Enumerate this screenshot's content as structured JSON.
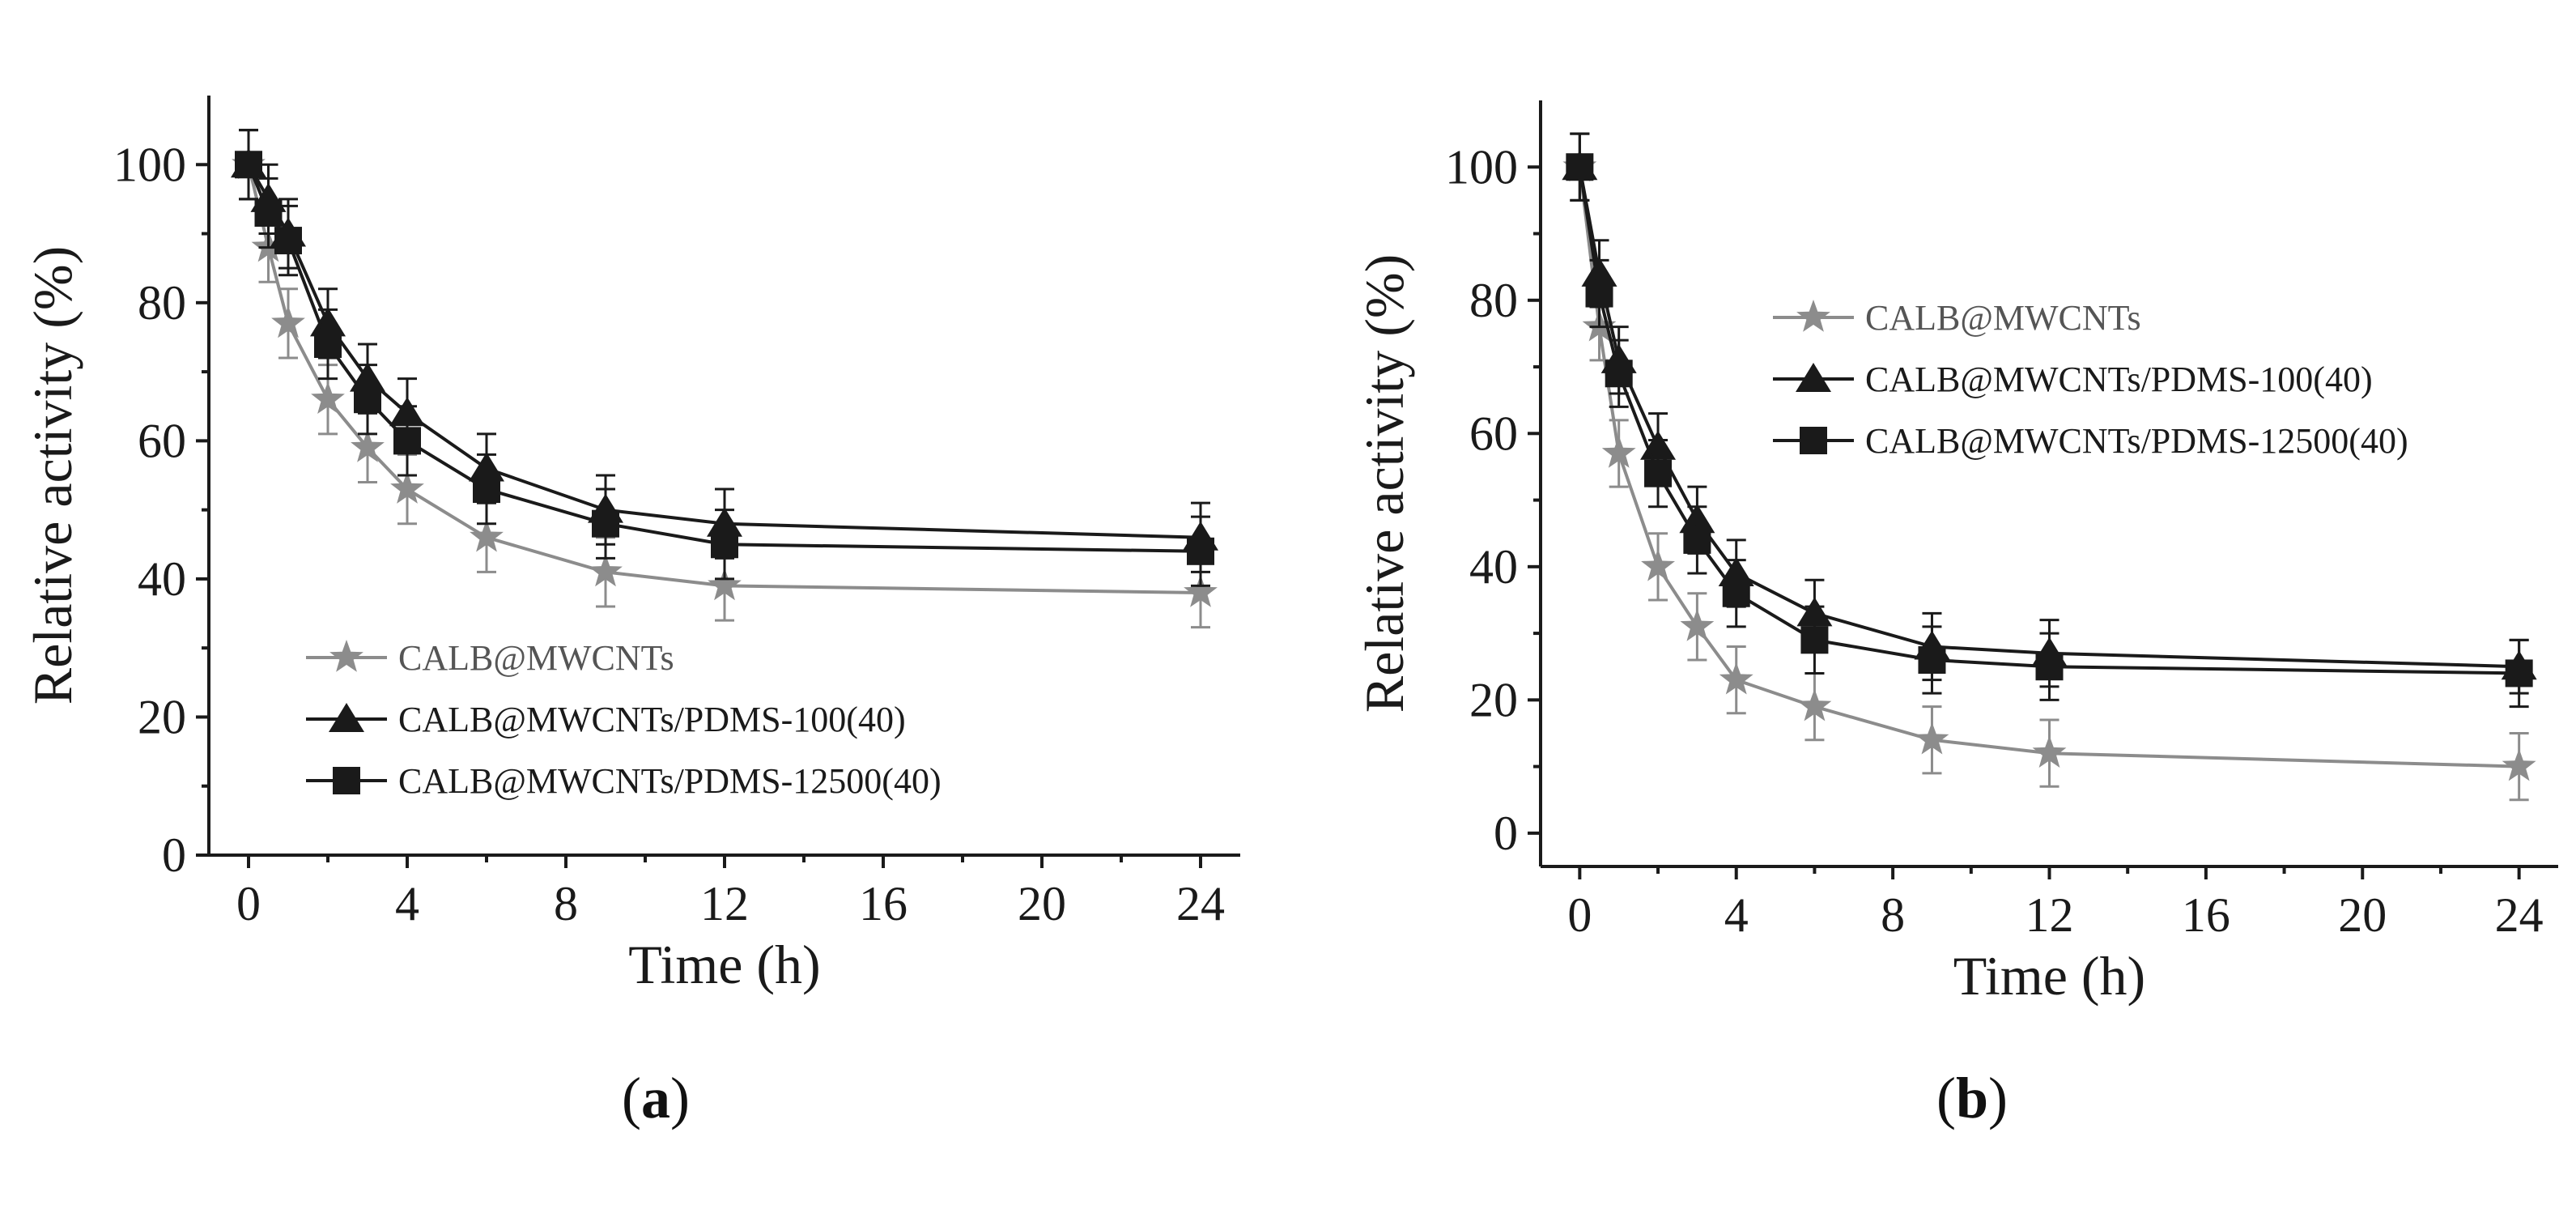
{
  "chart_data": [
    {
      "panel": "a",
      "type": "line",
      "xlabel": "Time (h)",
      "ylabel": "Relative activity (%)",
      "xlim": [
        -1,
        25
      ],
      "ylim": [
        0,
        110
      ],
      "xticks": [
        0,
        4,
        8,
        12,
        16,
        20,
        24
      ],
      "yticks": [
        0,
        20,
        40,
        60,
        80,
        100
      ],
      "legend_position": "bottom-left",
      "series": [
        {
          "name": "CALB@MWCNTs",
          "marker": "star",
          "color": "#8c8c8c",
          "x": [
            0,
            0.5,
            1,
            2,
            3,
            4,
            6,
            9,
            12,
            24
          ],
          "y": [
            100,
            88,
            77,
            66,
            59,
            53,
            46,
            41,
            39,
            38
          ],
          "err": [
            5,
            5,
            5,
            5,
            5,
            5,
            5,
            5,
            5,
            5
          ]
        },
        {
          "name": "CALB@MWCNTs/PDMS-100(40)",
          "marker": "triangle",
          "color": "#1a1a1a",
          "x": [
            0,
            0.5,
            1,
            2,
            3,
            4,
            6,
            9,
            12,
            24
          ],
          "y": [
            100,
            95,
            90,
            77,
            69,
            64,
            56,
            50,
            48,
            46
          ],
          "err": [
            5,
            5,
            5,
            5,
            5,
            5,
            5,
            5,
            5,
            5
          ]
        },
        {
          "name": "CALB@MWCNTs/PDMS-12500(40)",
          "marker": "square",
          "color": "#1a1a1a",
          "x": [
            0,
            0.5,
            1,
            2,
            3,
            4,
            6,
            9,
            12,
            24
          ],
          "y": [
            100,
            93,
            89,
            74,
            66,
            60,
            53,
            48,
            45,
            44
          ],
          "err": [
            5,
            5,
            5,
            5,
            5,
            5,
            5,
            5,
            5,
            5
          ]
        }
      ]
    },
    {
      "panel": "b",
      "type": "line",
      "xlabel": "Time (h)",
      "ylabel": "Relative activity (%)",
      "xlim": [
        -1,
        25
      ],
      "ylim": [
        -5,
        110
      ],
      "xticks": [
        0,
        4,
        8,
        12,
        16,
        20,
        24
      ],
      "yticks": [
        0,
        20,
        40,
        60,
        80,
        100
      ],
      "legend_position": "top-right",
      "series": [
        {
          "name": "CALB@MWCNTs",
          "marker": "star",
          "color": "#8c8c8c",
          "x": [
            0,
            0.5,
            1,
            2,
            3,
            4,
            6,
            9,
            12,
            24
          ],
          "y": [
            100,
            76,
            57,
            40,
            31,
            23,
            19,
            14,
            12,
            10
          ],
          "err": [
            5,
            5,
            5,
            5,
            5,
            5,
            5,
            5,
            5,
            5
          ]
        },
        {
          "name": "CALB@MWCNTs/PDMS-100(40)",
          "marker": "triangle",
          "color": "#1a1a1a",
          "x": [
            0,
            0.5,
            1,
            2,
            3,
            4,
            6,
            9,
            12,
            24
          ],
          "y": [
            100,
            84,
            71,
            58,
            47,
            39,
            33,
            28,
            27,
            25
          ],
          "err": [
            5,
            5,
            5,
            5,
            5,
            5,
            5,
            5,
            5,
            4
          ]
        },
        {
          "name": "CALB@MWCNTs/PDMS-12500(40)",
          "marker": "square",
          "color": "#1a1a1a",
          "x": [
            0,
            0.5,
            1,
            2,
            3,
            4,
            6,
            9,
            12,
            24
          ],
          "y": [
            100,
            81,
            69,
            54,
            44,
            36,
            29,
            26,
            25,
            24
          ],
          "err": [
            5,
            5,
            5,
            5,
            5,
            5,
            5,
            5,
            5,
            5
          ]
        }
      ]
    }
  ],
  "labels": {
    "panel_a_open": "(",
    "panel_a_letter": "a",
    "panel_a_close": ")",
    "panel_b_open": "(",
    "panel_b_letter": "b",
    "panel_b_close": ")"
  }
}
